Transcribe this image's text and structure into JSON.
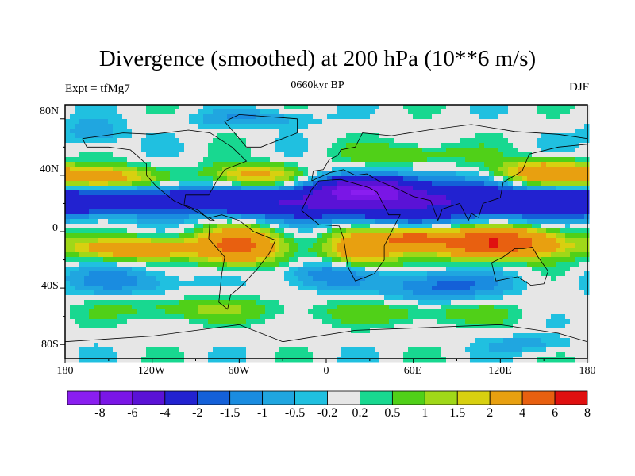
{
  "title": "Divergence (smoothed) at 200 hPa (10**6 m/s)",
  "subtitle_left": "Expt = tfMg7",
  "subtitle_center": "0660kyr BP",
  "subtitle_right": "DJF",
  "lat_labels": [
    "80N",
    "40N",
    "0",
    "40S",
    "80S"
  ],
  "lon_labels": [
    "180",
    "120W",
    "60W",
    "0",
    "60E",
    "120E",
    "180"
  ],
  "colorbar": {
    "labels": [
      "-8",
      "-6",
      "-4",
      "-2",
      "-1.5",
      "-1",
      "-0.5",
      "-0.2",
      "0.2",
      "0.5",
      "1",
      "1.5",
      "2",
      "4",
      "6",
      "8"
    ],
    "colors": [
      "#8a1ef0",
      "#7a16e6",
      "#5a12d6",
      "#2222d0",
      "#1460d8",
      "#1a8ce0",
      "#20a6e0",
      "#20c0e0",
      "#e6e6e6",
      "#18d890",
      "#50d018",
      "#a0d818",
      "#d8d010",
      "#e8a010",
      "#e86010",
      "#e01010"
    ]
  },
  "chart_data": {
    "type": "heatmap",
    "title": "Divergence (smoothed) at 200 hPa (10**6 m/s)",
    "xlabel": "",
    "ylabel": "",
    "xlim": [
      -180,
      180
    ],
    "ylim": [
      -90,
      90
    ],
    "levels": [
      -8,
      -6,
      -4,
      -2,
      -1.5,
      -1,
      -0.5,
      -0.2,
      0.2,
      0.5,
      1,
      1.5,
      2,
      4,
      6,
      8
    ],
    "blobs": [
      {
        "lon": -120,
        "lat": 22,
        "rx": 60,
        "ry": 10,
        "v": -3.2
      },
      {
        "lon": -30,
        "lat": 20,
        "rx": 50,
        "ry": 10,
        "v": -3.0
      },
      {
        "lon": 60,
        "lat": 22,
        "rx": 70,
        "ry": 14,
        "v": -4.5
      },
      {
        "lon": 160,
        "lat": 20,
        "rx": 40,
        "ry": 10,
        "v": -3.0
      },
      {
        "lon": 25,
        "lat": 30,
        "rx": 30,
        "ry": 8,
        "v": -5.0
      },
      {
        "lon": -155,
        "lat": 38,
        "rx": 35,
        "ry": 8,
        "v": 3.0
      },
      {
        "lon": -50,
        "lat": 40,
        "rx": 30,
        "ry": 8,
        "v": 2.5
      },
      {
        "lon": 150,
        "lat": 42,
        "rx": 30,
        "ry": 8,
        "v": 3.5
      },
      {
        "lon": 60,
        "lat": 55,
        "rx": 45,
        "ry": 8,
        "v": 1.0
      },
      {
        "lon": -130,
        "lat": -12,
        "rx": 40,
        "ry": 7,
        "v": 3.5
      },
      {
        "lon": -60,
        "lat": -10,
        "rx": 28,
        "ry": 12,
        "v": 4.5
      },
      {
        "lon": 25,
        "lat": -12,
        "rx": 25,
        "ry": 12,
        "v": 3.5
      },
      {
        "lon": 115,
        "lat": -8,
        "rx": 45,
        "ry": 10,
        "v": 6.0
      },
      {
        "lon": 60,
        "lat": -5,
        "rx": 20,
        "ry": 6,
        "v": 4.0
      },
      {
        "lon": -140,
        "lat": -35,
        "rx": 40,
        "ry": 10,
        "v": -1.2
      },
      {
        "lon": 0,
        "lat": -30,
        "rx": 30,
        "ry": 10,
        "v": -1.5
      },
      {
        "lon": 80,
        "lat": -38,
        "rx": 40,
        "ry": 10,
        "v": -1.8
      },
      {
        "lon": -90,
        "lat": -55,
        "rx": 60,
        "ry": 8,
        "v": 1.0
      },
      {
        "lon": 60,
        "lat": -58,
        "rx": 70,
        "ry": 8,
        "v": 0.8
      },
      {
        "lon": -160,
        "lat": 70,
        "rx": 20,
        "ry": 10,
        "v": -1.0
      },
      {
        "lon": -50,
        "lat": 80,
        "rx": 40,
        "ry": 6,
        "v": -1.0
      },
      {
        "lon": 140,
        "lat": -80,
        "rx": 30,
        "ry": 6,
        "v": -0.8
      }
    ]
  }
}
